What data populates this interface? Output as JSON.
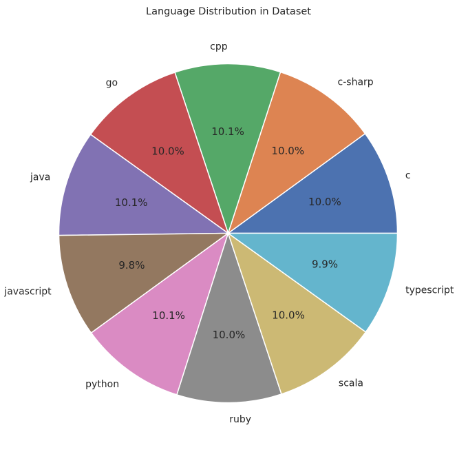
{
  "chart_data": {
    "type": "pie",
    "title": "Language Distribution in Dataset",
    "start_angle_deg": 0,
    "direction": "counterclockwise",
    "slices": [
      {
        "label": "c",
        "value": 10.0,
        "pct_label": "10.0%",
        "color": "#4c72b0"
      },
      {
        "label": "c-sharp",
        "value": 10.0,
        "pct_label": "10.0%",
        "color": "#dd8452"
      },
      {
        "label": "cpp",
        "value": 10.1,
        "pct_label": "10.1%",
        "color": "#55a868"
      },
      {
        "label": "go",
        "value": 10.0,
        "pct_label": "10.0%",
        "color": "#c44e52"
      },
      {
        "label": "java",
        "value": 10.1,
        "pct_label": "10.1%",
        "color": "#8172b3"
      },
      {
        "label": "javascript",
        "value": 9.8,
        "pct_label": "9.8%",
        "color": "#937860"
      },
      {
        "label": "python",
        "value": 10.1,
        "pct_label": "10.1%",
        "color": "#da8bc3"
      },
      {
        "label": "ruby",
        "value": 10.0,
        "pct_label": "10.0%",
        "color": "#8c8c8c"
      },
      {
        "label": "scala",
        "value": 10.0,
        "pct_label": "10.0%",
        "color": "#ccb974"
      },
      {
        "label": "typescript",
        "value": 9.9,
        "pct_label": "9.9%",
        "color": "#64b5cd"
      }
    ]
  }
}
